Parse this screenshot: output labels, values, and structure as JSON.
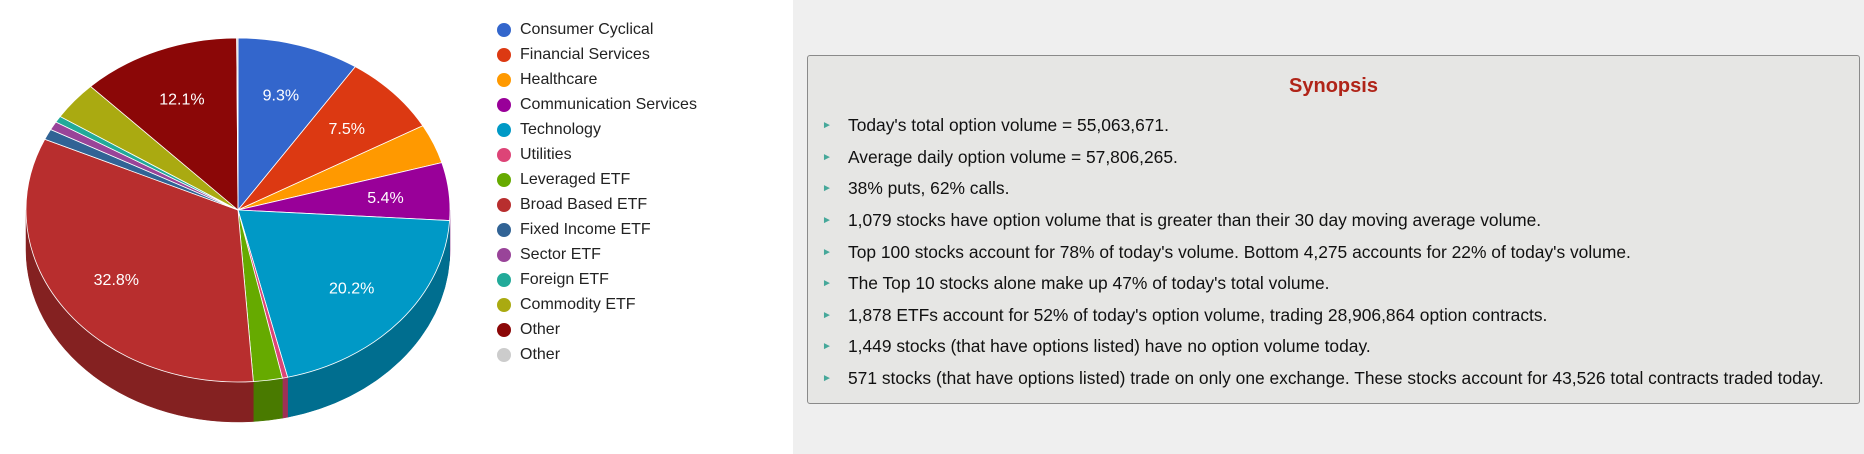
{
  "chart_data": {
    "type": "pie",
    "title": "",
    "slices": [
      {
        "label": "Consumer Cyclical",
        "value": 9.3,
        "color": "#3366cc",
        "show_label": true
      },
      {
        "label": "Financial Services",
        "value": 7.5,
        "color": "#dc3912",
        "show_label": true
      },
      {
        "label": "Healthcare",
        "value": 3.7,
        "color": "#ff9900",
        "show_label": false
      },
      {
        "label": "Communication Services",
        "value": 5.4,
        "color": "#990099",
        "show_label": true
      },
      {
        "label": "Technology",
        "value": 20.2,
        "color": "#0099c6",
        "show_label": true
      },
      {
        "label": "Utilities",
        "value": 0.4,
        "color": "#dd4477",
        "show_label": false
      },
      {
        "label": "Leveraged ETF",
        "value": 2.2,
        "color": "#66aa00",
        "show_label": false
      },
      {
        "label": "Broad Based ETF",
        "value": 32.8,
        "color": "#b82e2e",
        "show_label": true
      },
      {
        "label": "Fixed Income ETF",
        "value": 1.0,
        "color": "#316395",
        "show_label": false
      },
      {
        "label": "Sector ETF",
        "value": 0.8,
        "color": "#994499",
        "show_label": false
      },
      {
        "label": "Foreign ETF",
        "value": 0.6,
        "color": "#22aa99",
        "show_label": false
      },
      {
        "label": "Commodity ETF",
        "value": 3.6,
        "color": "#aaaa11",
        "show_label": false
      },
      {
        "label": "Other",
        "value": 12.1,
        "color": "#8b0707",
        "show_label": true
      },
      {
        "label": "Other",
        "value": 0.1,
        "color": "#cccccc",
        "show_label": false
      }
    ],
    "style": "3d",
    "legend_position": "right",
    "value_format": "percent, one decimal"
  },
  "synopsis": {
    "title": "Synopsis",
    "items": [
      "Today's total option volume = 55,063,671.",
      "Average daily option volume = 57,806,265.",
      "38% puts, 62% calls.",
      "1,079 stocks have option volume that is greater than their 30 day moving average volume.",
      "Top 100 stocks account for 78% of today's volume. Bottom 4,275 accounts for 22% of today's volume.",
      "The Top 10 stocks alone make up 47% of today's total volume.",
      "1,878 ETFs account for 52% of today's option volume, trading 28,906,864 option contracts.",
      "1,449 stocks (that have options listed) have no option volume today.",
      "571 stocks (that have options listed) trade on only one exchange. These stocks account for 43,526 total contracts traded today."
    ],
    "bullet": "►"
  }
}
